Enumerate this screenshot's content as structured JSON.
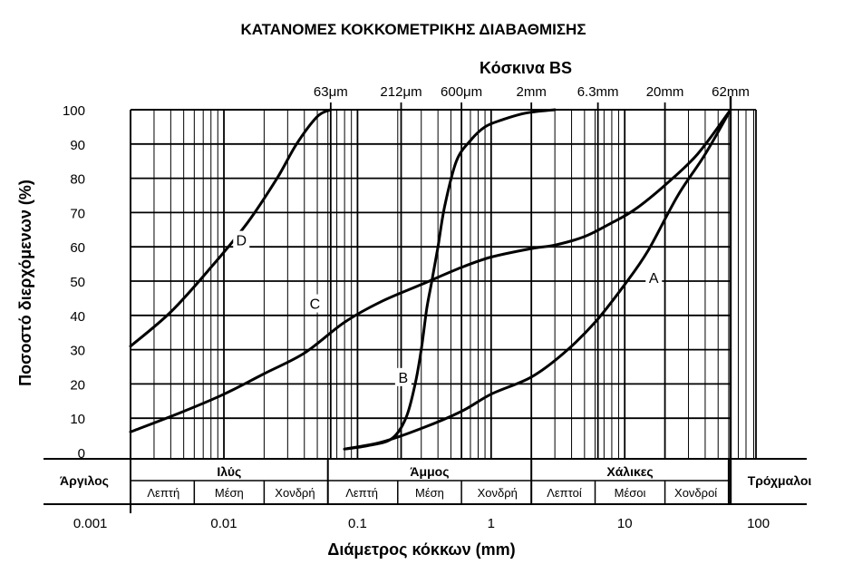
{
  "chart_data": {
    "type": "line",
    "title": "ΚΑΤΑΝΟΜΕΣ ΚΟΚΚΟΜΕΤΡΙΚΗΣ ΔΙΑΒΑΘΜΙΣΗΣ",
    "xlabel": "Διάμετρος κόκκων (mm)",
    "ylabel": "Ποσοστό διερχόμενων (%)",
    "xscale": "log",
    "xlim": [
      0.002,
      62
    ],
    "ylim": [
      0,
      100
    ],
    "grid": true,
    "x_ticks": [
      {
        "value": 0.001,
        "label": "0.001"
      },
      {
        "value": 0.01,
        "label": "0.01"
      },
      {
        "value": 0.1,
        "label": "0.1"
      },
      {
        "value": 1,
        "label": "1"
      },
      {
        "value": 10,
        "label": "10"
      },
      {
        "value": 100,
        "label": "100"
      }
    ],
    "y_ticks": [
      {
        "value": 0,
        "label": "0"
      },
      {
        "value": 10,
        "label": "10"
      },
      {
        "value": 20,
        "label": "20"
      },
      {
        "value": 30,
        "label": "30"
      },
      {
        "value": 40,
        "label": "40"
      },
      {
        "value": 50,
        "label": "50"
      },
      {
        "value": 60,
        "label": "60"
      },
      {
        "value": 70,
        "label": "70"
      },
      {
        "value": 80,
        "label": "80"
      },
      {
        "value": 90,
        "label": "90"
      },
      {
        "value": 100,
        "label": "100"
      }
    ],
    "sieve_axis": {
      "title": "Κόσκινα BS",
      "sieves": [
        {
          "value": 0.063,
          "label": "63μm"
        },
        {
          "value": 0.212,
          "label": "212μm"
        },
        {
          "value": 0.6,
          "label": "600μm"
        },
        {
          "value": 2,
          "label": "2mm"
        },
        {
          "value": 6.3,
          "label": "6.3mm"
        },
        {
          "value": 20,
          "label": "20mm"
        },
        {
          "value": 62,
          "label": "62mm"
        }
      ]
    },
    "classification": {
      "left": "Άργιλος",
      "right": "Τρόχμαλοι",
      "groups": [
        {
          "name": "Ιλύς",
          "from": 0.002,
          "to": 0.06,
          "subs": [
            "Λεπτή",
            "Μέση",
            "Χονδρή"
          ]
        },
        {
          "name": "Άμμος",
          "from": 0.06,
          "to": 2,
          "subs": [
            "Λεπτή",
            "Μέση",
            "Χονδρή"
          ]
        },
        {
          "name": "Χάλικες",
          "from": 2,
          "to": 60,
          "subs": [
            "Λεπτοί",
            "Μέσοι",
            "Χονδροί"
          ]
        }
      ],
      "sub_bounds": [
        0.002,
        0.006,
        0.02,
        0.06,
        0.2,
        0.6,
        2,
        6,
        20,
        60
      ]
    },
    "series": [
      {
        "name": "A",
        "label_at": [
          16.5,
          51
        ],
        "x": [
          0.08,
          0.15,
          0.3,
          0.6,
          1,
          2,
          3.5,
          6,
          10,
          15,
          25,
          40,
          62
        ],
        "y": [
          1,
          3,
          7,
          12,
          17,
          22,
          29,
          38,
          49,
          59,
          75,
          87,
          100
        ]
      },
      {
        "name": "B",
        "label_at": [
          0.22,
          22
        ],
        "x": [
          0.08,
          0.12,
          0.18,
          0.23,
          0.27,
          0.3,
          0.33,
          0.36,
          0.4,
          0.45,
          0.55,
          0.7,
          0.9,
          1.2,
          1.8,
          3
        ],
        "y": [
          1,
          2,
          4,
          10,
          20,
          30,
          42,
          50,
          60,
          72,
          85,
          91,
          95,
          97,
          99,
          100
        ]
      },
      {
        "name": "C",
        "label_at": [
          0.048,
          43.5
        ],
        "x": [
          0.002,
          0.005,
          0.01,
          0.02,
          0.04,
          0.08,
          0.15,
          0.3,
          0.6,
          1,
          2,
          3,
          5,
          8,
          12,
          20,
          35,
          62
        ],
        "y": [
          6,
          12,
          17,
          23,
          29,
          38,
          44,
          49,
          54,
          57,
          59.5,
          60.5,
          63,
          67,
          71,
          78,
          87,
          100
        ]
      },
      {
        "name": "D",
        "label_at": [
          0.0135,
          62
        ],
        "x": [
          0.002,
          0.004,
          0.008,
          0.015,
          0.025,
          0.035,
          0.05,
          0.063
        ],
        "y": [
          31,
          41,
          54,
          67,
          80,
          90,
          98,
          100
        ]
      }
    ]
  }
}
